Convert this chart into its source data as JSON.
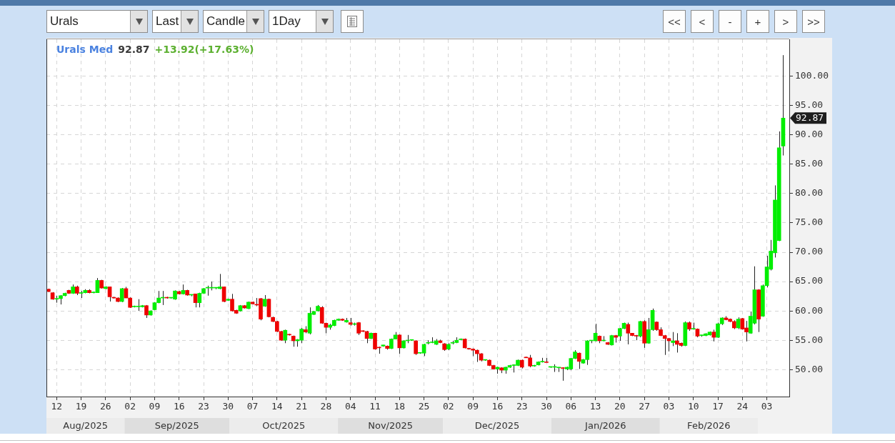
{
  "chart_data": [
    {
      "type": "other",
      "annotations": [
        "Urals",
        "Last",
        "Candle",
        "1Day"
      ]
    },
    {
      "type": "other",
      "annotations": [
        "<<",
        "<",
        "-",
        "+",
        ">",
        ">>"
      ]
    },
    {
      "type": "candlestick",
      "title": "Urals Med",
      "annotations": [
        "92.87",
        "+13.92(+17.63%)",
        "92.87",
        "Aug/2025",
        "Sep/2025",
        "Oct/2025",
        "Nov/2025",
        "Dec/2025",
        "Jan/2026",
        "Feb/2026"
      ],
      "categories": [
        null,
        null,
        "12",
        null,
        null,
        null,
        null,
        null,
        "19",
        null,
        null,
        null,
        null,
        null,
        "26",
        null,
        null,
        null,
        null,
        null,
        "02",
        null,
        null,
        null,
        null,
        null,
        "09",
        null,
        null,
        null,
        null,
        null,
        "16",
        null,
        null,
        null,
        null,
        null,
        "23",
        null,
        null,
        null,
        null,
        null,
        "30",
        null,
        null,
        null,
        null,
        null,
        "07",
        null,
        null,
        null,
        null,
        null,
        "14",
        null,
        null,
        null,
        null,
        null,
        "21",
        null,
        null,
        null,
        null,
        null,
        "28",
        null,
        null,
        null,
        null,
        null,
        "04",
        null,
        null,
        null,
        null,
        null,
        "11",
        null,
        null,
        null,
        null,
        null,
        "18",
        null,
        null,
        null,
        null,
        null,
        "25",
        null,
        null,
        null,
        null,
        null,
        "02",
        null,
        null,
        null,
        null,
        null,
        "09",
        null,
        null,
        null,
        null,
        null,
        "16",
        null,
        null,
        null,
        null,
        null,
        "23",
        null,
        null,
        null,
        null,
        null,
        "30",
        null,
        null,
        null,
        null,
        null,
        "06",
        null,
        null,
        null,
        null,
        null,
        "13",
        null,
        null,
        null,
        null,
        null,
        "20",
        null,
        null,
        null,
        null,
        null,
        "27",
        null,
        null,
        null,
        null,
        null,
        "03",
        null,
        null,
        null,
        null,
        null,
        "10",
        null,
        null,
        null,
        null,
        null,
        "17",
        null,
        null,
        null,
        null,
        null,
        "24",
        null,
        null,
        null,
        null,
        null,
        "03",
        null,
        null,
        null,
        null
      ],
      "ohlc": [
        [
          63.7,
          63.8,
          63.2,
          63.3
        ],
        [
          63.1,
          63.2,
          61.9,
          62.0
        ],
        [
          62.0,
          62.6,
          61.4,
          62.1
        ],
        [
          62.1,
          62.7,
          61.1,
          62.6
        ],
        [
          62.6,
          63.1,
          62.5,
          63.0
        ],
        [
          63.5,
          63.6,
          62.9,
          63.0
        ],
        [
          63.0,
          64.5,
          62.9,
          64.1
        ],
        [
          64.1,
          64.3,
          62.7,
          63.0
        ],
        [
          63.0,
          63.4,
          62.2,
          63.1
        ],
        [
          63.1,
          63.7,
          63.0,
          63.5
        ],
        [
          63.5,
          63.7,
          63.0,
          63.1
        ],
        [
          63.1,
          63.3,
          63.0,
          63.2
        ],
        [
          63.1,
          65.6,
          63.1,
          65.2
        ],
        [
          65.2,
          65.3,
          63.8,
          63.9
        ],
        [
          63.8,
          64.2,
          63.7,
          64.1
        ],
        [
          64.1,
          64.1,
          61.6,
          62.4
        ],
        [
          62.3,
          62.4,
          62.1,
          62.2
        ],
        [
          62.2,
          62.3,
          61.5,
          61.6
        ],
        [
          61.6,
          63.9,
          61.5,
          63.8
        ],
        [
          63.8,
          64.1,
          62.2,
          62.2
        ],
        [
          62.2,
          62.3,
          60.5,
          60.6
        ],
        [
          60.7,
          60.9,
          60.6,
          60.8
        ],
        [
          60.7,
          62.0,
          60.0,
          60.8
        ],
        [
          60.7,
          61.0,
          60.6,
          60.9
        ],
        [
          60.9,
          61.0,
          58.8,
          59.3
        ],
        [
          59.3,
          60.1,
          59.2,
          60.0
        ],
        [
          60.2,
          61.5,
          60.1,
          61.4
        ],
        [
          61.4,
          63.4,
          61.3,
          62.2
        ],
        [
          62.2,
          63.4,
          61.0,
          62.3
        ],
        [
          62.3,
          62.4,
          62.1,
          62.2
        ],
        [
          62.2,
          62.3,
          62.1,
          62.2
        ],
        [
          62.0,
          63.5,
          61.9,
          63.4
        ],
        [
          63.3,
          63.4,
          62.8,
          62.9
        ],
        [
          62.9,
          64.5,
          62.8,
          63.5
        ],
        [
          63.5,
          63.6,
          62.6,
          62.7
        ],
        [
          62.7,
          62.8,
          62.5,
          62.7
        ],
        [
          62.9,
          62.9,
          60.6,
          61.4
        ],
        [
          61.4,
          63.1,
          60.6,
          63.0
        ],
        [
          63.0,
          63.9,
          62.9,
          63.8
        ],
        [
          63.9,
          64.3,
          62.6,
          64.0
        ],
        [
          63.9,
          65.0,
          63.5,
          63.9
        ],
        [
          63.9,
          64.0,
          63.7,
          63.9
        ],
        [
          63.8,
          66.3,
          63.7,
          64.1
        ],
        [
          64.1,
          64.1,
          61.5,
          61.6
        ],
        [
          61.8,
          62.1,
          61.7,
          62.0
        ],
        [
          62.0,
          62.9,
          59.9,
          60.0
        ],
        [
          60.1,
          60.2,
          59.5,
          59.6
        ],
        [
          60.0,
          61.0,
          59.9,
          60.9
        ],
        [
          60.9,
          61.0,
          60.4,
          60.5
        ],
        [
          60.4,
          61.6,
          60.3,
          61.5
        ],
        [
          61.5,
          61.6,
          61.1,
          61.2
        ],
        [
          61.1,
          62.2,
          60.8,
          61.0
        ],
        [
          62.1,
          62.2,
          58.4,
          58.6
        ],
        [
          60.8,
          62.7,
          60.7,
          62.0
        ],
        [
          62.0,
          62.1,
          58.9,
          59.0
        ],
        [
          58.9,
          59.0,
          58.1,
          58.2
        ],
        [
          58.2,
          58.3,
          56.4,
          56.5
        ],
        [
          56.5,
          56.6,
          54.9,
          55.0
        ],
        [
          55.0,
          56.8,
          54.5,
          56.7
        ],
        [
          56.0,
          56.1,
          55.8,
          55.9
        ],
        [
          55.7,
          55.8,
          53.9,
          54.9
        ],
        [
          54.9,
          55.2,
          53.9,
          55.1
        ],
        [
          55.0,
          57.1,
          54.5,
          56.9
        ],
        [
          56.8,
          57.4,
          56.2,
          56.4
        ],
        [
          56.2,
          60.6,
          56.0,
          59.6
        ],
        [
          59.4,
          60.0,
          59.3,
          59.9
        ],
        [
          60.0,
          61.0,
          59.9,
          60.8
        ],
        [
          60.6,
          60.8,
          57.8,
          57.9
        ],
        [
          57.9,
          58.0,
          56.2,
          57.2
        ],
        [
          57.2,
          57.8,
          56.8,
          57.6
        ],
        [
          57.5,
          58.5,
          57.4,
          58.4
        ],
        [
          58.4,
          58.7,
          58.3,
          58.6
        ],
        [
          58.6,
          58.7,
          58.3,
          58.4
        ],
        [
          58.1,
          58.8,
          58.0,
          58.4
        ],
        [
          58.0,
          58.8,
          57.5,
          57.7
        ],
        [
          57.7,
          58.0,
          57.5,
          57.8
        ],
        [
          58.0,
          58.1,
          55.9,
          56.2
        ],
        [
          56.6,
          56.7,
          56.4,
          56.5
        ],
        [
          56.5,
          56.6,
          54.5,
          55.3
        ],
        [
          55.3,
          56.3,
          55.2,
          56.2
        ],
        [
          56.2,
          56.2,
          53.4,
          53.5
        ],
        [
          53.8,
          53.9,
          52.7,
          53.7
        ],
        [
          54.0,
          54.2,
          53.9,
          54.2
        ],
        [
          54.0,
          54.1,
          53.4,
          53.6
        ],
        [
          53.6,
          55.3,
          53.5,
          55.2
        ],
        [
          55.2,
          56.4,
          55.2,
          55.9
        ],
        [
          55.9,
          56.0,
          52.7,
          53.7
        ],
        [
          53.7,
          55.0,
          53.6,
          54.9
        ],
        [
          54.9,
          55.9,
          54.5,
          55.0
        ],
        [
          55.0,
          55.1,
          54.9,
          55.0
        ],
        [
          54.9,
          55.0,
          52.5,
          52.7
        ],
        [
          52.8,
          52.9,
          52.7,
          52.8
        ],
        [
          52.8,
          54.4,
          52.3,
          54.3
        ],
        [
          54.5,
          55.0,
          54.3,
          54.5
        ],
        [
          54.6,
          55.5,
          54.5,
          54.7
        ],
        [
          54.3,
          55.2,
          54.2,
          54.9
        ],
        [
          54.9,
          55.1,
          54.5,
          54.6
        ],
        [
          54.4,
          54.5,
          53.2,
          53.4
        ],
        [
          53.5,
          54.5,
          53.3,
          54.3
        ],
        [
          54.5,
          54.9,
          54.3,
          54.6
        ],
        [
          54.6,
          55.5,
          54.5,
          55.0
        ],
        [
          55.1,
          55.3,
          55.0,
          55.2
        ],
        [
          55.2,
          55.3,
          53.6,
          53.7
        ],
        [
          53.6,
          53.7,
          53.4,
          53.5
        ],
        [
          53.5,
          53.6,
          52.3,
          53.3
        ],
        [
          53.3,
          53.4,
          51.3,
          52.7
        ],
        [
          52.7,
          52.8,
          51.4,
          51.6
        ],
        [
          51.6,
          51.7,
          51.5,
          51.6
        ],
        [
          51.6,
          51.7,
          50.6,
          50.7
        ],
        [
          50.7,
          50.8,
          50.0,
          50.1
        ],
        [
          50.1,
          50.5,
          49.3,
          50.4
        ],
        [
          50.3,
          50.4,
          49.4,
          49.9
        ],
        [
          49.9,
          50.5,
          49.3,
          50.4
        ],
        [
          50.4,
          50.8,
          50.3,
          50.7
        ],
        [
          50.7,
          50.9,
          49.5,
          50.8
        ],
        [
          50.7,
          51.7,
          50.6,
          51.6
        ],
        [
          51.6,
          51.7,
          50.2,
          50.4
        ],
        [
          52.1,
          52.2,
          52.0,
          52.0
        ],
        [
          52.0,
          52.5,
          50.4,
          50.6
        ],
        [
          50.6,
          50.8,
          50.5,
          50.7
        ],
        [
          50.8,
          51.4,
          50.7,
          51.3
        ],
        [
          51.3,
          52.0,
          51.2,
          51.3
        ],
        [
          51.3,
          52.0,
          51.2,
          51.2
        ],
        [
          50.4,
          50.5,
          50.3,
          50.4
        ],
        [
          50.4,
          50.9,
          49.6,
          50.4
        ],
        [
          50.3,
          50.4,
          49.6,
          50.3
        ],
        [
          50.3,
          50.4,
          48.1,
          50.2
        ],
        [
          50.1,
          50.5,
          49.9,
          50.4
        ],
        [
          50.1,
          52.0,
          49.9,
          51.9
        ],
        [
          51.9,
          53.3,
          51.8,
          53.0
        ],
        [
          52.8,
          52.9,
          50.1,
          51.4
        ],
        [
          51.1,
          51.8,
          51.0,
          51.7
        ],
        [
          51.7,
          55.0,
          50.8,
          54.9
        ],
        [
          54.9,
          55.0,
          54.5,
          54.9
        ],
        [
          54.9,
          57.8,
          54.8,
          56.2
        ],
        [
          55.7,
          55.8,
          54.5,
          54.9
        ],
        [
          54.9,
          55.7,
          54.8,
          54.9
        ],
        [
          54.6,
          54.7,
          54.2,
          54.3
        ],
        [
          54.2,
          55.9,
          54.1,
          55.8
        ],
        [
          55.8,
          55.9,
          54.6,
          55.5
        ],
        [
          55.7,
          57.1,
          54.9,
          57.0
        ],
        [
          57.0,
          58.0,
          56.9,
          57.9
        ],
        [
          57.7,
          58.0,
          54.3,
          56.2
        ],
        [
          56.2,
          56.2,
          55.7,
          55.8
        ],
        [
          55.8,
          55.9,
          55.0,
          55.7
        ],
        [
          55.7,
          58.3,
          55.5,
          58.2
        ],
        [
          58.2,
          58.4,
          53.7,
          54.5
        ],
        [
          54.5,
          58.8,
          54.4,
          56.8
        ],
        [
          56.8,
          60.4,
          56.6,
          60.1
        ],
        [
          58.1,
          58.2,
          56.6,
          56.8
        ],
        [
          56.8,
          57.2,
          55.7,
          55.8
        ],
        [
          55.8,
          55.9,
          52.5,
          55.3
        ],
        [
          55.3,
          55.4,
          53.1,
          54.9
        ],
        [
          54.6,
          56.4,
          54.0,
          54.9
        ],
        [
          54.9,
          56.2,
          52.9,
          54.3
        ],
        [
          54.5,
          54.6,
          53.9,
          54.1
        ],
        [
          54.1,
          58.2,
          54.0,
          58.0
        ],
        [
          58.0,
          58.2,
          56.6,
          56.9
        ],
        [
          56.9,
          58.0,
          56.8,
          57.0
        ],
        [
          56.9,
          57.0,
          55.5,
          55.7
        ],
        [
          55.8,
          55.9,
          55.6,
          55.8
        ],
        [
          55.8,
          56.2,
          55.7,
          56.1
        ],
        [
          55.9,
          56.5,
          55.8,
          56.4
        ],
        [
          56.4,
          56.8,
          54.8,
          55.5
        ],
        [
          55.5,
          58.0,
          55.4,
          57.8
        ],
        [
          57.8,
          58.9,
          57.6,
          58.8
        ],
        [
          58.8,
          59.1,
          58.4,
          58.5
        ],
        [
          58.6,
          58.7,
          58.1,
          58.2
        ],
        [
          58.2,
          58.4,
          56.9,
          57.1
        ],
        [
          57.1,
          58.9,
          56.9,
          58.6
        ],
        [
          58.7,
          58.8,
          56.8,
          56.9
        ],
        [
          57.1,
          58.3,
          54.8,
          56.4
        ],
        [
          56.2,
          59.9,
          56.1,
          59.1
        ],
        [
          57.9,
          67.6,
          57.7,
          63.6
        ],
        [
          63.6,
          63.7,
          56.4,
          58.6
        ],
        [
          59.1,
          64.5,
          59.0,
          64.3
        ],
        [
          64.3,
          69.4,
          64.0,
          67.5
        ],
        [
          67.1,
          72.1,
          66.9,
          70.2
        ],
        [
          69.9,
          81.4,
          69.1,
          78.9
        ],
        [
          72.0,
          90.6,
          71.9,
          87.8
        ],
        [
          88.1,
          103.6,
          86.5,
          92.87
        ]
      ],
      "colors": [
        "#ee0000",
        "#ee0000",
        "#00ee00",
        "#00ee00",
        "#00ee00",
        "#ee0000",
        "#00ee00",
        "#ee0000",
        "#00ee00",
        "#00ee00",
        "#ee0000",
        "#00ee00",
        "#00ee00",
        "#ee0000",
        "#00ee00",
        "#ee0000",
        "#ee0000",
        "#ee0000",
        "#00ee00",
        "#ee0000",
        "#ee0000",
        "#00ee00",
        "#00ee00",
        "#00ee00",
        "#ee0000",
        "#00ee00",
        "#00ee00",
        "#00ee00",
        "#00ee00",
        "#ee0000",
        "#00ee00",
        "#00ee00",
        "#ee0000",
        "#00ee00",
        "#ee0000",
        "#00ee00",
        "#ee0000",
        "#00ee00",
        "#00ee00",
        "#00ee00",
        "#00ee00",
        "#00ee00",
        "#00ee00",
        "#ee0000",
        "#00ee00",
        "#ee0000",
        "#ee0000",
        "#00ee00",
        "#ee0000",
        "#00ee00",
        "#ee0000",
        "#ee0000",
        "#ee0000",
        "#00ee00",
        "#ee0000",
        "#ee0000",
        "#ee0000",
        "#ee0000",
        "#00ee00",
        "#ee0000",
        "#ee0000",
        "#00ee00",
        "#00ee00",
        "#ee0000",
        "#00ee00",
        "#00ee00",
        "#00ee00",
        "#ee0000",
        "#ee0000",
        "#00ee00",
        "#00ee00",
        "#00ee00",
        "#ee0000",
        "#00ee00",
        "#ee0000",
        "#00ee00",
        "#ee0000",
        "#ee0000",
        "#ee0000",
        "#00ee00",
        "#ee0000",
        "#ee0000",
        "#00ee00",
        "#ee0000",
        "#00ee00",
        "#00ee00",
        "#ee0000",
        "#00ee00",
        "#00ee00",
        "#00ee00",
        "#ee0000",
        "#00ee00",
        "#00ee00",
        "#00ee00",
        "#00ee00",
        "#00ee00",
        "#ee0000",
        "#ee0000",
        "#00ee00",
        "#00ee00",
        "#00ee00",
        "#00ee00",
        "#ee0000",
        "#ee0000",
        "#ee0000",
        "#ee0000",
        "#ee0000",
        "#00ee00",
        "#ee0000",
        "#ee0000",
        "#00ee00",
        "#ee0000",
        "#00ee00",
        "#00ee00",
        "#00ee00",
        "#00ee00",
        "#ee0000",
        "#ee0000",
        "#ee0000",
        "#00ee00",
        "#00ee00",
        "#00ee00",
        "#ee0000",
        "#00ee00",
        "#00ee00",
        "#00ee00",
        "#ee0000",
        "#00ee00",
        "#00ee00",
        "#00ee00",
        "#ee0000",
        "#00ee00",
        "#00ee00",
        "#00ee00",
        "#00ee00",
        "#ee0000",
        "#00ee00",
        "#ee0000",
        "#00ee00",
        "#ee0000",
        "#00ee00",
        "#00ee00",
        "#ee0000",
        "#ee0000",
        "#ee0000",
        "#00ee00",
        "#ee0000",
        "#00ee00",
        "#00ee00",
        "#ee0000",
        "#ee0000",
        "#ee0000",
        "#ee0000",
        "#00ee00",
        "#ee0000",
        "#ee0000",
        "#00ee00",
        "#ee0000",
        "#00ee00",
        "#ee0000",
        "#00ee00",
        "#00ee00",
        "#00ee00",
        "#ee0000",
        "#00ee00",
        "#00ee00",
        "#ee0000",
        "#ee0000",
        "#ee0000",
        "#00ee00",
        "#ee0000",
        "#ee0000",
        "#00ee00",
        "#00ee00",
        "#ee0000",
        "#00ee00",
        "#00ee00",
        "#00ee00",
        "#00ee00",
        "#00ee00",
        "#00ee00"
      ],
      "ylim": [
        45.4,
        106.3
      ],
      "yticks": [
        {
          "value": 50,
          "label": "50.00"
        },
        {
          "value": 55,
          "label": "55.00"
        },
        {
          "value": 60,
          "label": "60.00"
        },
        {
          "value": 65,
          "label": "65.00"
        },
        {
          "value": 70,
          "label": "70.00"
        },
        {
          "value": 75,
          "label": "75.00"
        },
        {
          "value": 80,
          "label": "80.00"
        },
        {
          "value": 85,
          "label": "85.00"
        },
        {
          "value": 90,
          "label": "90.00"
        },
        {
          "value": 95,
          "label": "95.00"
        },
        {
          "value": 100,
          "label": "100.00"
        }
      ],
      "grid": true
    }
  ]
}
